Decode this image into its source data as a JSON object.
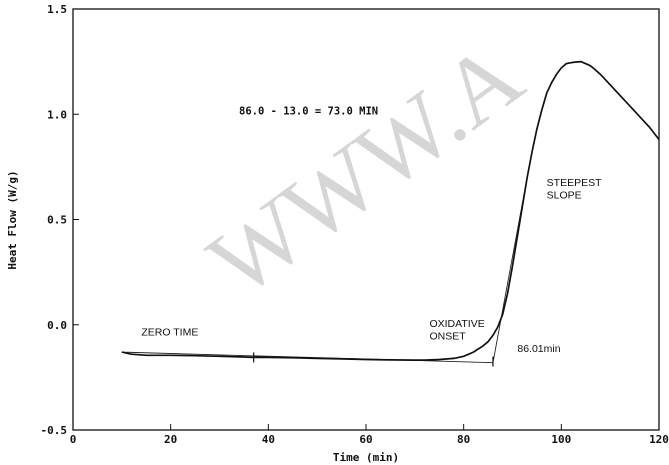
{
  "chart_data": {
    "type": "line",
    "title": "",
    "xlabel": "Time (min)",
    "ylabel": "Heat Flow (W/g)",
    "xlim": [
      0,
      120
    ],
    "ylim": [
      -0.5,
      1.5
    ],
    "x_ticks": [
      0,
      20,
      40,
      60,
      80,
      100,
      120
    ],
    "x_tick_labels": [
      "0",
      "20",
      "40",
      "60",
      "80",
      "100",
      "120"
    ],
    "y_ticks": [
      -0.5,
      0.0,
      0.5,
      1.0,
      1.5
    ],
    "y_tick_labels": [
      "-0.5",
      "0.0",
      "0.5",
      "1.0",
      "1.5"
    ],
    "grid": false,
    "series": [
      {
        "x": [
          10,
          12,
          15,
          20,
          25,
          30,
          35,
          37,
          40,
          45,
          50,
          55,
          60,
          65,
          70,
          72,
          75,
          78,
          80,
          82,
          84,
          85,
          86,
          87,
          88,
          89,
          90,
          91,
          92,
          93,
          94,
          95,
          96,
          97,
          98,
          99,
          100,
          101,
          102,
          103,
          104,
          105,
          106,
          107,
          108,
          110,
          112,
          114,
          116,
          118,
          120
        ],
        "y": [
          -0.13,
          -0.14,
          -0.145,
          -0.145,
          -0.147,
          -0.15,
          -0.153,
          -0.155,
          -0.155,
          -0.157,
          -0.16,
          -0.162,
          -0.165,
          -0.167,
          -0.168,
          -0.168,
          -0.165,
          -0.16,
          -0.15,
          -0.13,
          -0.1,
          -0.08,
          -0.05,
          -0.01,
          0.05,
          0.15,
          0.28,
          0.42,
          0.56,
          0.7,
          0.82,
          0.93,
          1.02,
          1.1,
          1.15,
          1.19,
          1.22,
          1.24,
          1.245,
          1.248,
          1.25,
          1.24,
          1.23,
          1.21,
          1.19,
          1.14,
          1.09,
          1.04,
          0.99,
          0.94,
          0.88
        ]
      }
    ],
    "annotations": [
      {
        "text": "86.0 - 13.0 =  73.0 MIN",
        "x": 34,
        "y": 1.0
      },
      {
        "text": "ZERO TIME",
        "x": 14,
        "y": -0.05
      },
      {
        "text": "OXIDATIVE",
        "x": 73,
        "y": -0.01
      },
      {
        "text": "ONSET",
        "x": 73,
        "y": -0.07
      },
      {
        "text": "STEEPEST",
        "x": 97,
        "y": 0.66
      },
      {
        "text": "SLOPE",
        "x": 97,
        "y": 0.6
      },
      {
        "text": "86.01min",
        "x": 91,
        "y": -0.13
      }
    ],
    "baseline": {
      "x": [
        10,
        86
      ],
      "y": [
        -0.13,
        -0.18
      ]
    },
    "tangent": {
      "x": [
        86,
        93
      ],
      "y": [
        -0.18,
        0.7
      ]
    },
    "markers": [
      {
        "x": 37,
        "y": -0.155
      },
      {
        "x": 86,
        "y": -0.175
      }
    ]
  },
  "watermark": "WWW.A"
}
